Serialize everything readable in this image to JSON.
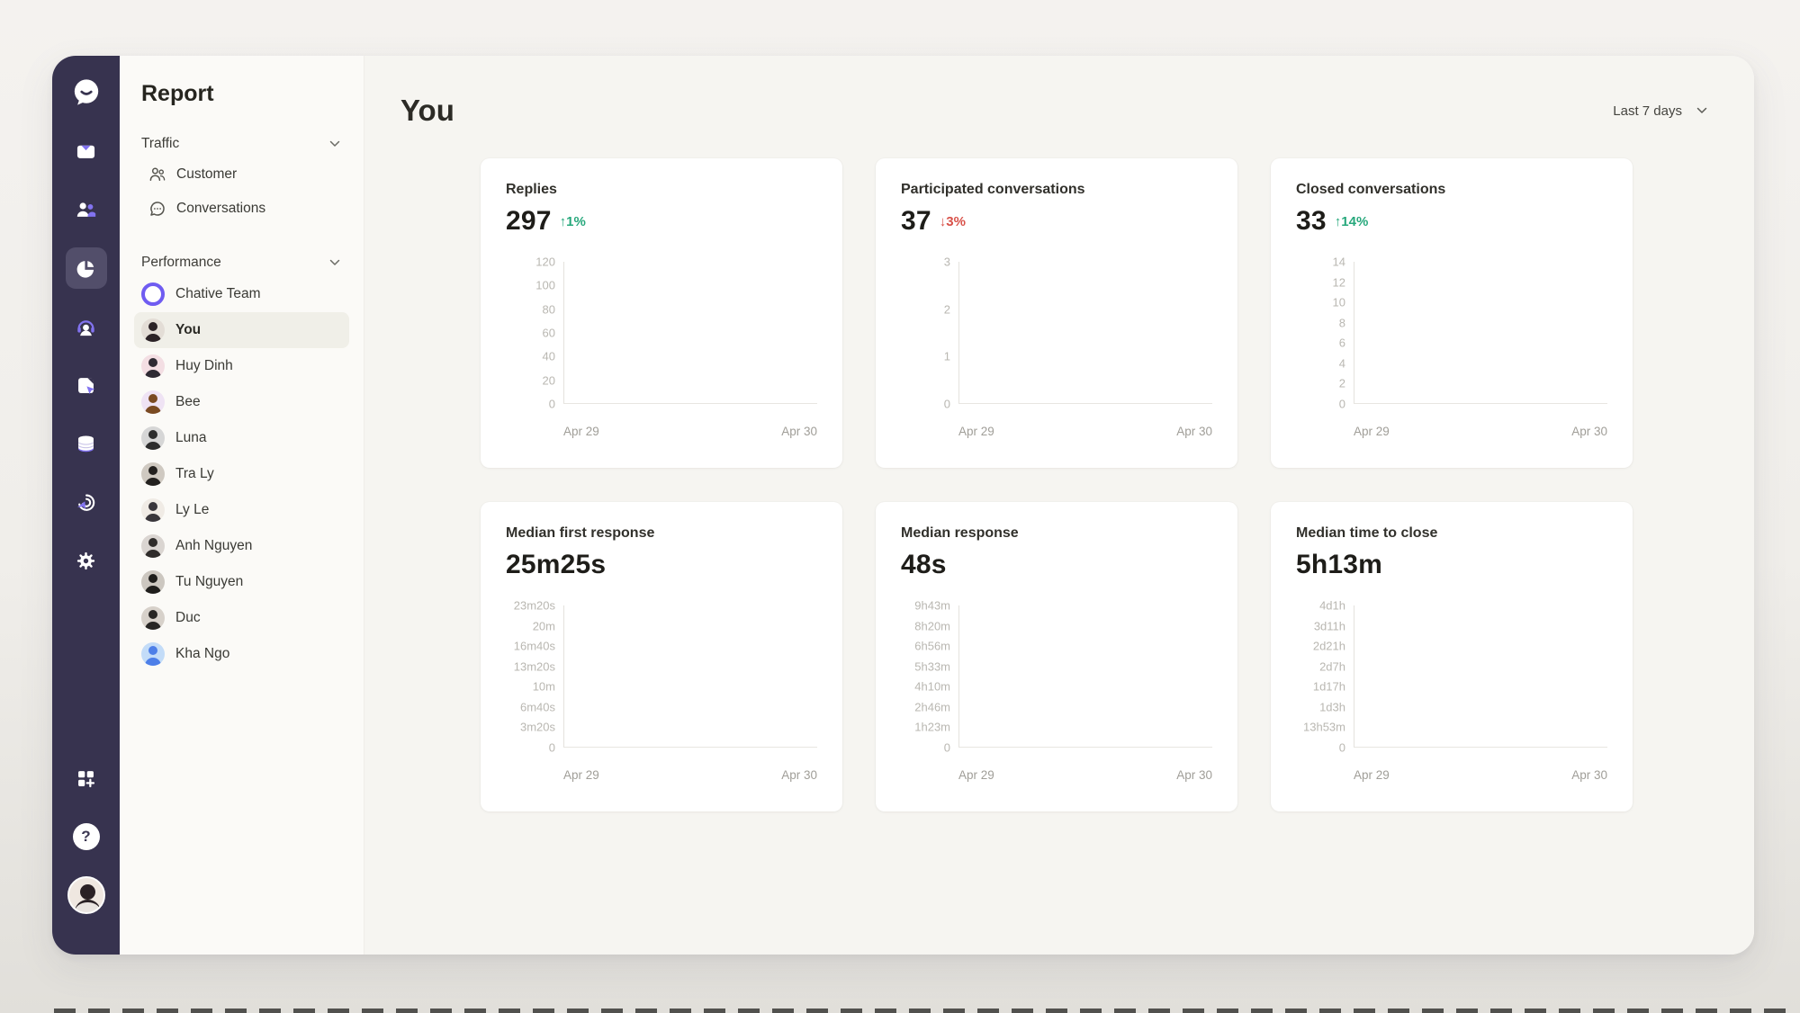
{
  "rail": {
    "icons": [
      {
        "id": "chative-logo",
        "selected": false
      },
      {
        "id": "inbox",
        "selected": false
      },
      {
        "id": "contacts",
        "selected": false
      },
      {
        "id": "reports",
        "selected": true
      },
      {
        "id": "agents",
        "selected": false
      },
      {
        "id": "pages",
        "selected": false
      },
      {
        "id": "data",
        "selected": false
      },
      {
        "id": "automation",
        "selected": false
      },
      {
        "id": "settings",
        "selected": false
      }
    ],
    "bottom_icons": [
      "apps",
      "help",
      "profile"
    ],
    "help_glyph": "?"
  },
  "sidebar": {
    "title": "Report",
    "traffic": {
      "label": "Traffic",
      "items": [
        {
          "label": "Customer",
          "icon": "customer-icon"
        },
        {
          "label": "Conversations",
          "icon": "conversations-icon"
        }
      ]
    },
    "performance": {
      "label": "Performance",
      "members": [
        {
          "name": "Chative Team",
          "avatar": "ring",
          "ring": "#6f5cf1",
          "selected": false
        },
        {
          "name": "You",
          "avatar": "person",
          "bg": "#e3ddd6",
          "fg": "#2b2226",
          "selected": true
        },
        {
          "name": "Huy Dinh",
          "avatar": "person",
          "bg": "#f3dee3",
          "fg": "#2e2a33",
          "selected": false
        },
        {
          "name": "Bee",
          "avatar": "person",
          "bg": "#efe3f4",
          "fg": "#7a4a22",
          "selected": false
        },
        {
          "name": "Luna",
          "avatar": "person",
          "bg": "#d6d6d6",
          "fg": "#2d2d2d",
          "selected": false
        },
        {
          "name": "Tra Ly",
          "avatar": "person",
          "bg": "#cfc9c1",
          "fg": "#23211f",
          "selected": false
        },
        {
          "name": "Ly Le",
          "avatar": "person",
          "bg": "#f0ebe5",
          "fg": "#39363b",
          "selected": false
        },
        {
          "name": "Anh Nguyen",
          "avatar": "person",
          "bg": "#dad5d1",
          "fg": "#2f2c2a",
          "selected": false
        },
        {
          "name": "Tu Nguyen",
          "avatar": "person",
          "bg": "#ccc7c0",
          "fg": "#1f1e1c",
          "selected": false
        },
        {
          "name": "Duc",
          "avatar": "person",
          "bg": "#d7d1ca",
          "fg": "#282624",
          "selected": false
        },
        {
          "name": "Kha Ngo",
          "avatar": "person",
          "bg": "#c3dcf8",
          "fg": "#4d7fe8",
          "selected": false
        }
      ]
    }
  },
  "main": {
    "title": "You",
    "date_filter": "Last 7 days",
    "cards": [
      {
        "title": "Replies",
        "value": "297",
        "delta": {
          "dir": "up",
          "text": "1%"
        },
        "chart": {
          "type": "line",
          "yticks": [
            "120",
            "100",
            "80",
            "60",
            "40",
            "20",
            "0"
          ],
          "xticks": [
            "Apr 29",
            "Apr 30"
          ]
        }
      },
      {
        "title": "Participated conversations",
        "value": "37",
        "delta": {
          "dir": "down",
          "text": "3%"
        },
        "chart": {
          "type": "line",
          "yticks": [
            "3",
            "2",
            "1",
            "0"
          ],
          "xticks": [
            "Apr 29",
            "Apr 30"
          ]
        }
      },
      {
        "title": "Closed conversations",
        "value": "33",
        "delta": {
          "dir": "up",
          "text": "14%"
        },
        "chart": {
          "type": "line",
          "yticks": [
            "14",
            "12",
            "10",
            "8",
            "6",
            "4",
            "2",
            "0"
          ],
          "xticks": [
            "Apr 29",
            "Apr 30"
          ]
        }
      },
      {
        "title": "Median first response",
        "value": "25m25s",
        "delta": null,
        "chart": {
          "type": "line",
          "yticks": [
            "23m20s",
            "20m",
            "16m40s",
            "13m20s",
            "10m",
            "6m40s",
            "3m20s",
            "0"
          ],
          "xticks": [
            "Apr 29",
            "Apr 30"
          ]
        }
      },
      {
        "title": "Median response",
        "value": "48s",
        "delta": null,
        "chart": {
          "type": "line",
          "yticks": [
            "9h43m",
            "8h20m",
            "6h56m",
            "5h33m",
            "4h10m",
            "2h46m",
            "1h23m",
            "0"
          ],
          "xticks": [
            "Apr 29",
            "Apr 30"
          ]
        }
      },
      {
        "title": "Median time to close",
        "value": "5h13m",
        "delta": null,
        "chart": {
          "type": "line",
          "yticks": [
            "4d1h",
            "3d11h",
            "2d21h",
            "2d7h",
            "1d17h",
            "1d3h",
            "13h53m",
            "0"
          ],
          "xticks": [
            "Apr 29",
            "Apr 30"
          ]
        }
      }
    ]
  },
  "colors": {
    "rail_bg": "#37334f",
    "rail_selected_bg": "#524e6a",
    "accent_purple": "#8273f0",
    "delta_up_green": "#27a87c",
    "delta_down_red": "#d85149",
    "main_bg": "#f6f5f1",
    "card_bg": "#ffffff"
  }
}
